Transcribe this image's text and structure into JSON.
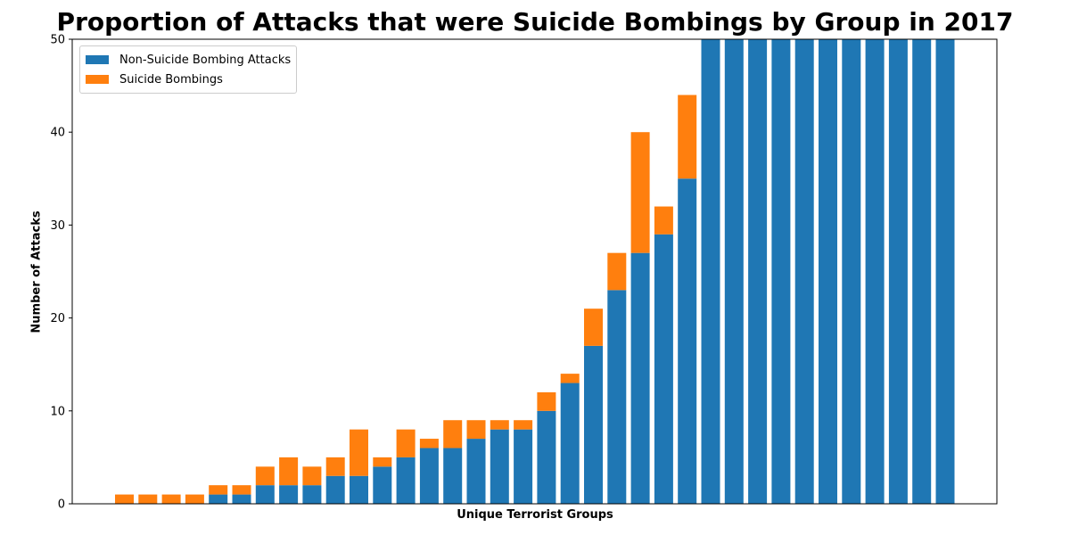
{
  "chart_data": {
    "type": "bar",
    "stacked": true,
    "title": "Proportion of Attacks that were Suicide Bombings by Group in 2017",
    "xlabel": "Unique Terrorist Groups",
    "ylabel": "Number of Attacks",
    "ylim": [
      0,
      50
    ],
    "yticks": [
      0,
      10,
      20,
      30,
      40,
      50
    ],
    "legend_position": "top-left",
    "grid": false,
    "series": [
      {
        "name": "Non-Suicide Bombing Attacks",
        "color": "#1f77b4",
        "values": [
          0,
          0,
          0,
          0,
          1,
          1,
          2,
          2,
          2,
          3,
          3,
          4,
          5,
          6,
          6,
          7,
          8,
          8,
          10,
          13,
          17,
          23,
          27,
          29,
          35,
          50,
          50,
          50,
          50,
          50,
          50,
          50,
          50,
          50,
          50,
          50
        ]
      },
      {
        "name": "Suicide Bombings",
        "color": "#ff7f0e",
        "values": [
          1,
          1,
          1,
          1,
          1,
          1,
          2,
          3,
          2,
          2,
          5,
          1,
          3,
          1,
          3,
          2,
          1,
          1,
          2,
          1,
          4,
          4,
          13,
          3,
          9,
          0,
          0,
          0,
          0,
          0,
          0,
          0,
          0,
          0,
          0,
          0
        ]
      }
    ]
  }
}
